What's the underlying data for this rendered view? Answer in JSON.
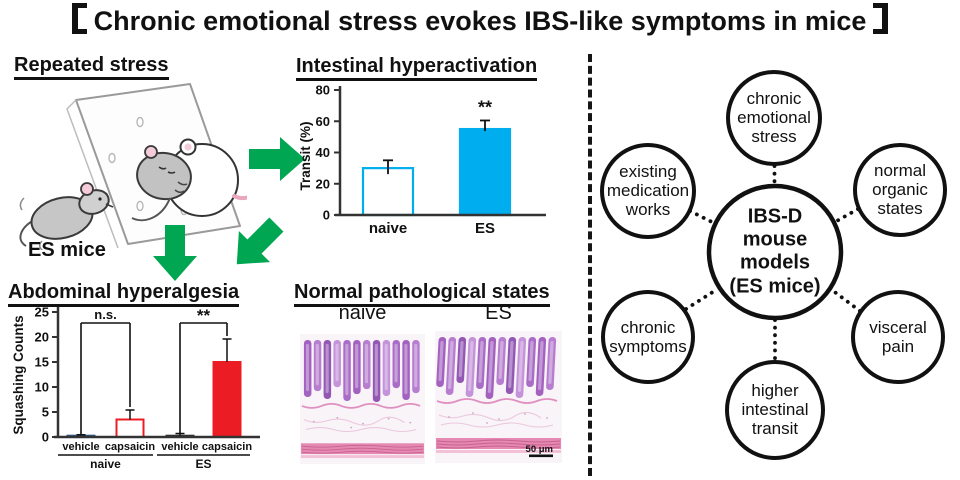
{
  "title": "Chronic emotional stress evokes IBS-like symptoms in mice",
  "title_brackets": [
    "【",
    "】"
  ],
  "panels": {
    "repeated_stress": {
      "heading": "Repeated stress",
      "caption": "ES mice"
    },
    "intestinal": {
      "heading": "Intestinal hyperactivation"
    },
    "abdominal": {
      "heading": "Abdominal hyperalgesia"
    },
    "pathology": {
      "heading": "Normal pathological states",
      "left_label": "naive",
      "right_label": "ES",
      "scale_bar_label": "50 μm"
    }
  },
  "diagram": {
    "center_label": "IBS-D\nmouse models\n(ES mice)",
    "satellites": [
      {
        "label": "chronic\nemotional\nstress"
      },
      {
        "label": "normal\norganic\nstates"
      },
      {
        "label": "visceral\npain"
      },
      {
        "label": "higher\nintestinal\ntransit"
      },
      {
        "label": "chronic\nsymptoms"
      },
      {
        "label": "existing\nmedication\nworks"
      }
    ]
  },
  "colors": {
    "arrow_green": "#00a651",
    "bar_cyan": "#00aeef",
    "bar_red": "#ec1c24",
    "bar_navy": "#2d5986",
    "ink": "#111111"
  },
  "chart_data": [
    {
      "id": "transit",
      "type": "bar",
      "title": "Intestinal hyperactivation",
      "ylabel": "Transit (%)",
      "ylim": [
        0,
        80
      ],
      "yticks": [
        0,
        20,
        40,
        60,
        80
      ],
      "categories": [
        "naive",
        "ES"
      ],
      "values": [
        30,
        55
      ],
      "errors": [
        5,
        5.5
      ],
      "significance": [
        "",
        "**"
      ],
      "bar_styles": [
        {
          "fill": "#ffffff",
          "stroke": "#00aeef"
        },
        {
          "fill": "#00aeef",
          "stroke": "#00aeef"
        }
      ]
    },
    {
      "id": "squashing",
      "type": "grouped-bar",
      "title": "Abdominal hyperalgesia",
      "ylabel": "Squashing Counts",
      "ylim": [
        0,
        25
      ],
      "yticks": [
        0,
        5,
        10,
        15,
        20,
        25
      ],
      "groups": [
        {
          "label": "naive",
          "comparison": "n.s.",
          "bars": [
            {
              "label": "vehicle",
              "value": 0.25,
              "error": 0.2,
              "fill": "#2d5986",
              "stroke": "#2d5986"
            },
            {
              "label": "capsaicin",
              "value": 3.5,
              "error": 1.9,
              "fill": "#ffffff",
              "stroke": "#ec1c24"
            }
          ]
        },
        {
          "label": "ES",
          "comparison": "**",
          "bars": [
            {
              "label": "vehicle",
              "value": 0.1,
              "error": 0.6,
              "fill": "#333333",
              "stroke": "#333333"
            },
            {
              "label": "capsaicin",
              "value": 15,
              "error": 4.6,
              "fill": "#ec1c24",
              "stroke": "#ec1c24"
            }
          ]
        }
      ]
    }
  ]
}
